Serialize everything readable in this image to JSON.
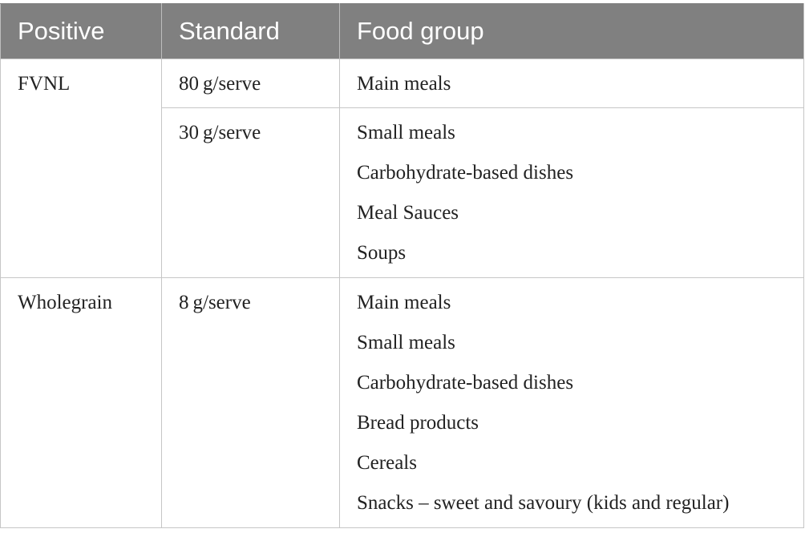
{
  "table": {
    "headers": [
      "Positive",
      "Standard",
      "Food group"
    ],
    "rows": [
      {
        "positive": "FVNL",
        "groups": [
          {
            "standard": "80 g/serve",
            "foods": [
              "Main meals"
            ]
          },
          {
            "standard": "30 g/serve",
            "foods": [
              "Small meals",
              "Carbohydrate-based dishes",
              "Meal Sauces",
              "Soups"
            ]
          }
        ]
      },
      {
        "positive": "Wholegrain",
        "groups": [
          {
            "standard": "8 g/serve",
            "foods": [
              "Main meals",
              "Small meals",
              "Carbohydrate-based dishes",
              "Bread products",
              "Cereals",
              "Snacks – sweet and savoury (kids and regular)"
            ]
          }
        ]
      }
    ]
  }
}
